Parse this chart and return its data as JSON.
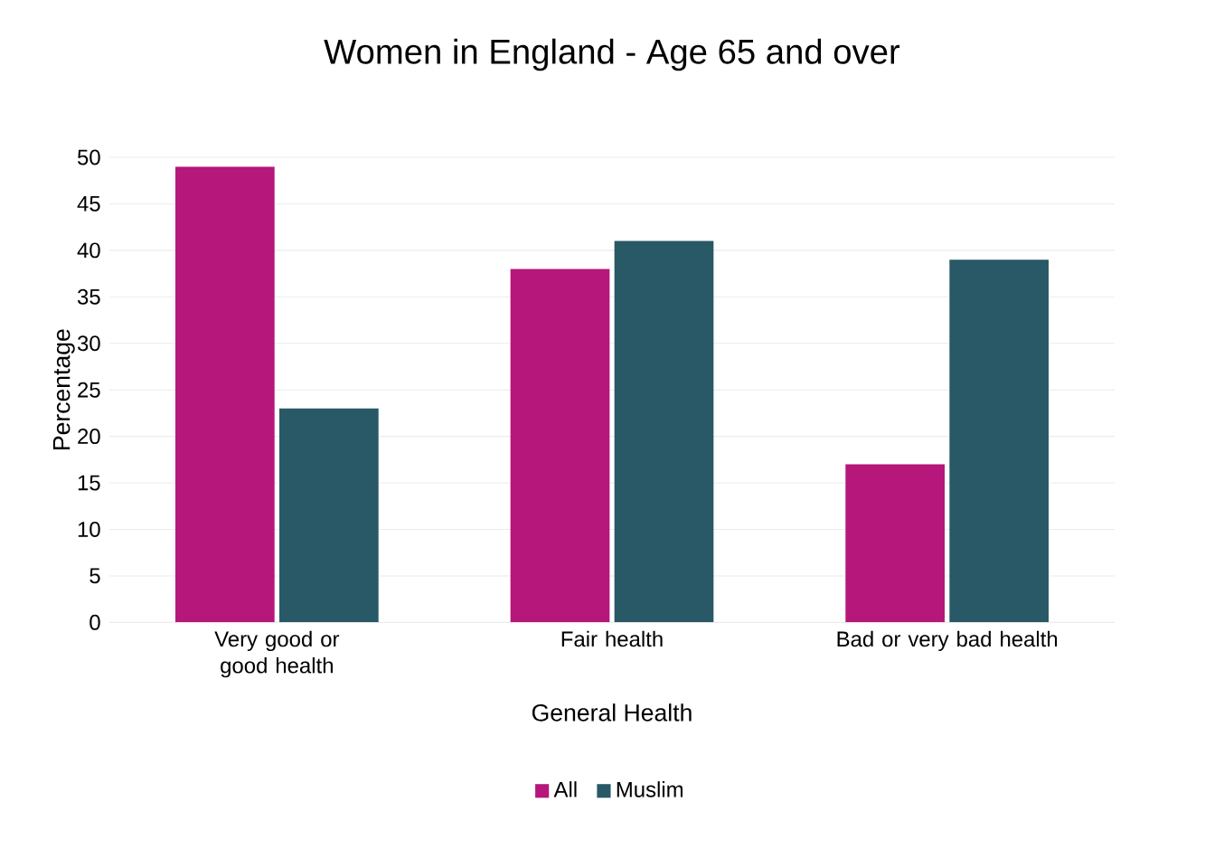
{
  "chart_data": {
    "type": "bar",
    "title": "Women in England - Age 65 and over",
    "xlabel": "General Health",
    "ylabel": "Percentage",
    "categories": [
      "Very good or good health",
      "Fair health",
      "Bad or very bad health"
    ],
    "series": [
      {
        "name": "All",
        "color": "#b5177a",
        "values": [
          49,
          38,
          17
        ]
      },
      {
        "name": "Muslim",
        "color": "#295866",
        "values": [
          23,
          41,
          39
        ]
      }
    ],
    "ylim": [
      0,
      50
    ],
    "yticks": [
      0,
      5,
      10,
      15,
      20,
      25,
      30,
      35,
      40,
      45,
      50
    ],
    "grid": "y",
    "legend": "bottom"
  }
}
